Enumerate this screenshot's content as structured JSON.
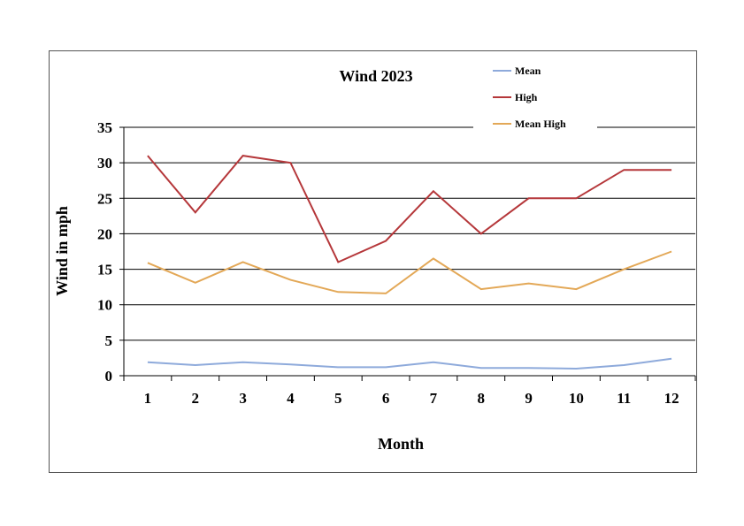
{
  "chart_data": {
    "type": "line",
    "title": "Wind 2023",
    "xlabel": "Month",
    "ylabel": "Wind in mph",
    "categories": [
      "1",
      "2",
      "3",
      "4",
      "5",
      "6",
      "7",
      "8",
      "9",
      "10",
      "11",
      "12"
    ],
    "ylim": [
      0,
      35
    ],
    "yticks": [
      0,
      5,
      10,
      15,
      20,
      25,
      30,
      35
    ],
    "grid": true,
    "legend_position": "top-right",
    "series": [
      {
        "name": "Mean",
        "color": "#8EAADB",
        "values": [
          1.9,
          1.5,
          1.9,
          1.6,
          1.2,
          1.2,
          1.9,
          1.1,
          1.1,
          1.0,
          1.5,
          2.4
        ]
      },
      {
        "name": "High",
        "color": "#B5373A",
        "values": [
          31,
          23,
          31,
          30,
          16,
          19,
          26,
          20,
          25,
          25,
          29,
          29
        ]
      },
      {
        "name": "Mean High",
        "color": "#E3A857",
        "values": [
          15.9,
          13.1,
          16.0,
          13.5,
          11.8,
          11.6,
          16.5,
          12.2,
          13.0,
          12.2,
          15.0,
          17.5
        ]
      }
    ]
  }
}
